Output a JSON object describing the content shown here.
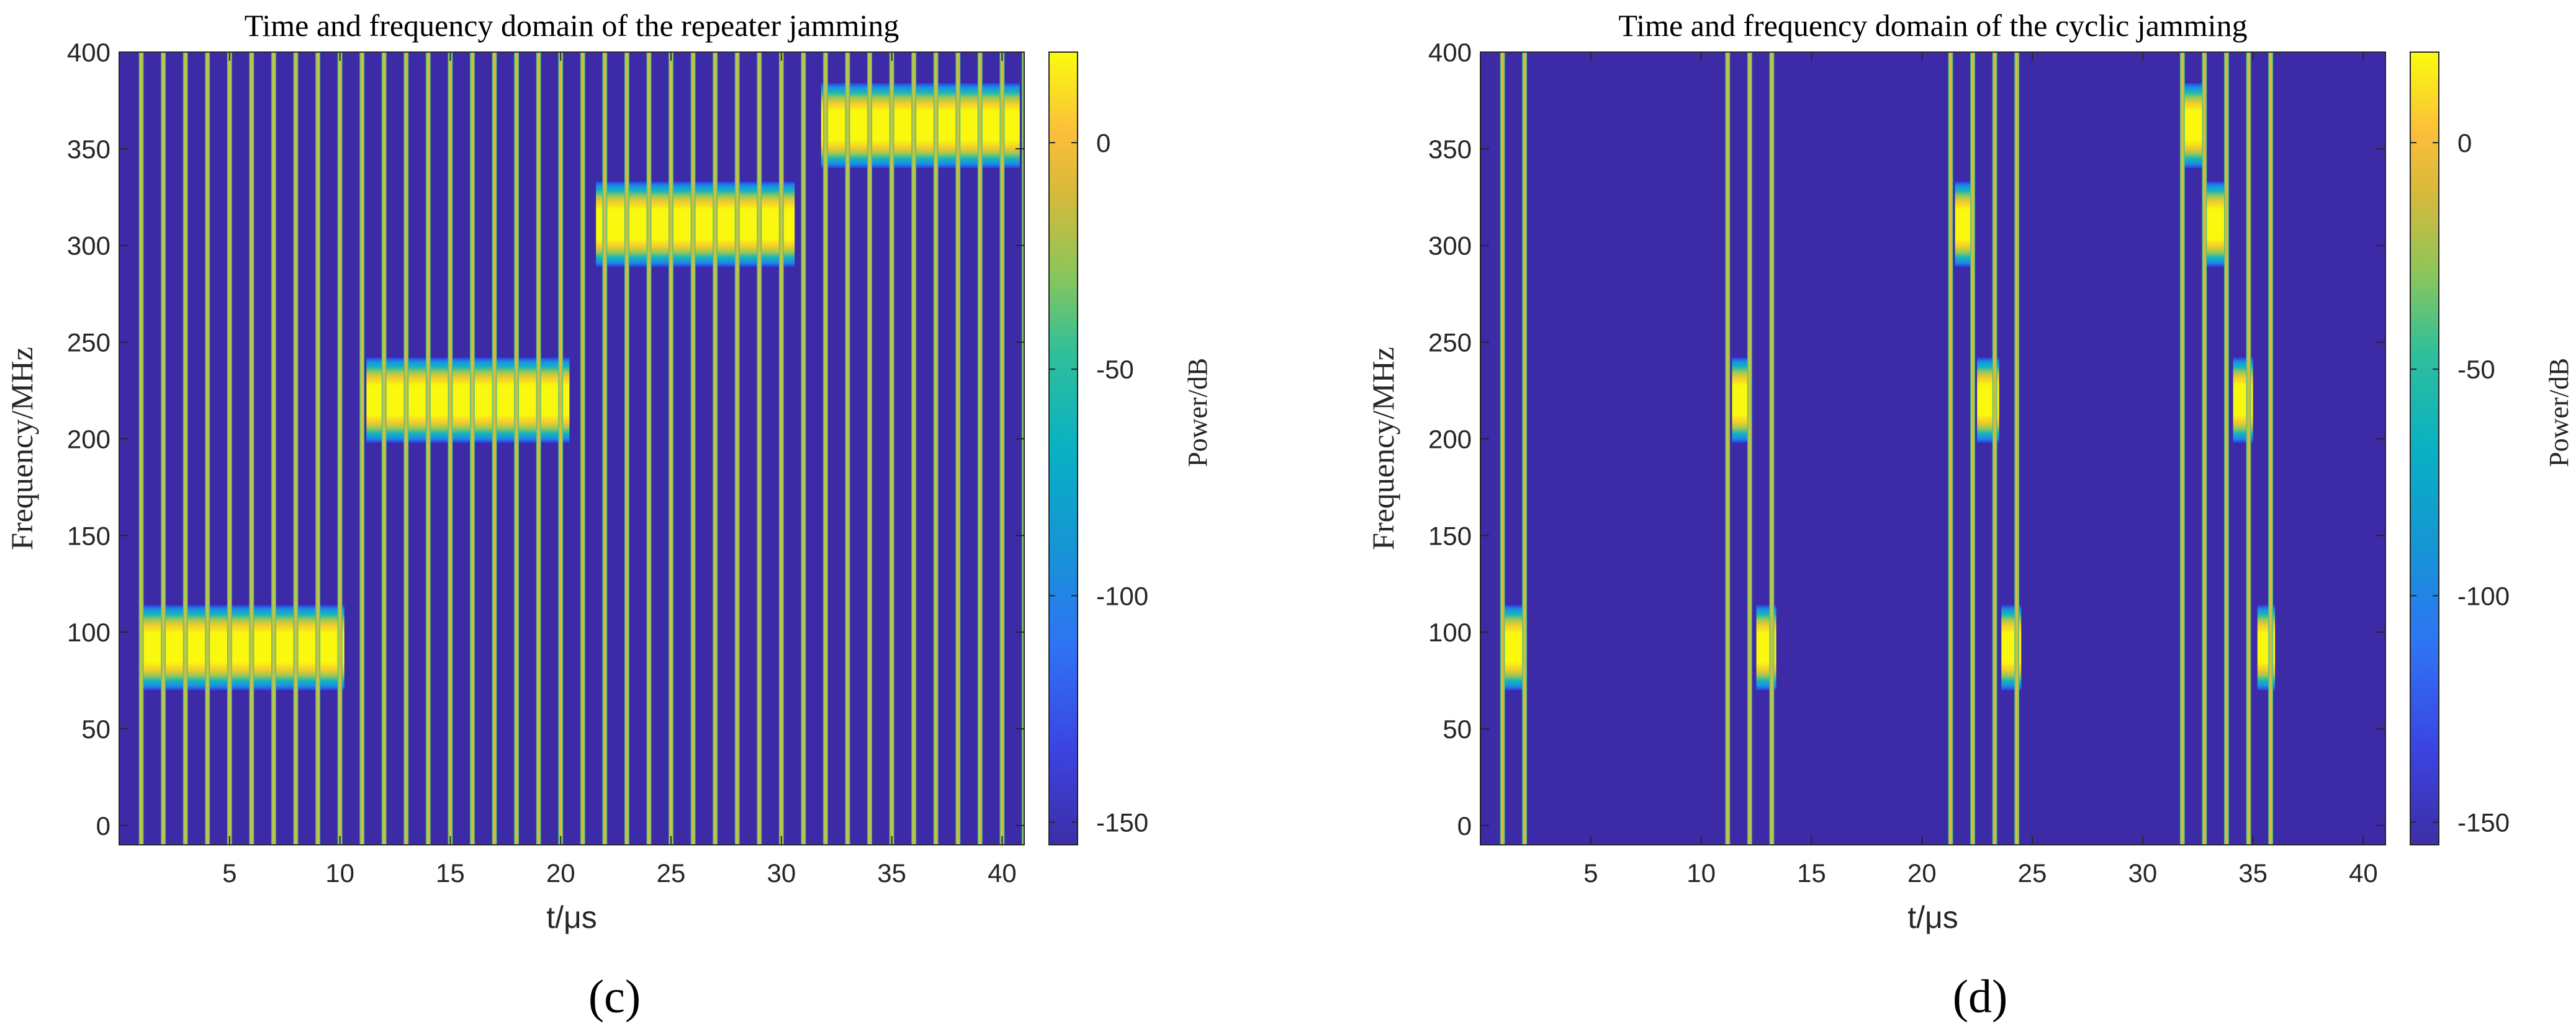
{
  "chart_data": [
    {
      "type": "heatmap",
      "panel_label": "(c)",
      "title": "Time and frequency domain of the repeater jamming",
      "xlabel": "t/μs",
      "ylabel": "Frequency/MHz",
      "colorbar_label": "Power/dB",
      "xlim": [
        0,
        41
      ],
      "ylim": [
        -10,
        400
      ],
      "xticks": [
        5,
        10,
        15,
        20,
        25,
        30,
        35,
        40
      ],
      "yticks": [
        0,
        50,
        100,
        150,
        200,
        250,
        300,
        350,
        400
      ],
      "clim": [
        -155,
        20
      ],
      "cticks": [
        0,
        -50,
        -100,
        -150
      ],
      "background_db": -155,
      "pulse_width_us": 0.22,
      "pulse_times_us": [
        1,
        2,
        3,
        4,
        5,
        6,
        7,
        8,
        9,
        10,
        11,
        12,
        13,
        14,
        15,
        16,
        17,
        18,
        19,
        20,
        21,
        22,
        23,
        24,
        25,
        26,
        27,
        28,
        29,
        30,
        31,
        32,
        33,
        34,
        35,
        36,
        37,
        38,
        39,
        40,
        41
      ],
      "bands": [
        {
          "t_start": 1.0,
          "t_end": 10.2,
          "f_center": 92,
          "f_half_width": 22
        },
        {
          "t_start": 11.2,
          "t_end": 20.4,
          "f_center": 220,
          "f_half_width": 22
        },
        {
          "t_start": 21.6,
          "t_end": 30.6,
          "f_center": 311,
          "f_half_width": 22
        },
        {
          "t_start": 31.8,
          "t_end": 40.8,
          "f_center": 362,
          "f_half_width": 22
        }
      ]
    },
    {
      "type": "heatmap",
      "panel_label": "(d)",
      "title": "Time and frequency domain of the cyclic jamming",
      "xlabel": "t/μs",
      "ylabel": "Frequency/MHz",
      "colorbar_label": "Power/dB",
      "xlim": [
        0,
        41
      ],
      "ylim": [
        -10,
        400
      ],
      "xticks": [
        5,
        10,
        15,
        20,
        25,
        30,
        35,
        40
      ],
      "yticks": [
        0,
        50,
        100,
        150,
        200,
        250,
        300,
        350,
        400
      ],
      "clim": [
        -155,
        20
      ],
      "cticks": [
        0,
        -50,
        -100,
        -150
      ],
      "background_db": -155,
      "pulse_width_us": 0.22,
      "pulse_times_us": [
        1.0,
        2.0,
        11.2,
        12.2,
        13.2,
        21.3,
        22.3,
        23.3,
        24.3,
        31.8,
        32.8,
        33.8,
        34.8,
        35.8
      ],
      "bands": [
        {
          "t_start": 0.9,
          "t_end": 1.9,
          "f_center": 92,
          "f_half_width": 22
        },
        {
          "t_start": 11.4,
          "t_end": 12.3,
          "f_center": 220,
          "f_half_width": 22
        },
        {
          "t_start": 12.5,
          "t_end": 13.4,
          "f_center": 92,
          "f_half_width": 22
        },
        {
          "t_start": 21.5,
          "t_end": 22.4,
          "f_center": 311,
          "f_half_width": 22
        },
        {
          "t_start": 22.5,
          "t_end": 23.5,
          "f_center": 220,
          "f_half_width": 22
        },
        {
          "t_start": 23.6,
          "t_end": 24.5,
          "f_center": 92,
          "f_half_width": 22
        },
        {
          "t_start": 31.9,
          "t_end": 32.8,
          "f_center": 362,
          "f_half_width": 22
        },
        {
          "t_start": 32.9,
          "t_end": 33.9,
          "f_center": 311,
          "f_half_width": 22
        },
        {
          "t_start": 34.1,
          "t_end": 35.0,
          "f_center": 220,
          "f_half_width": 22
        },
        {
          "t_start": 35.2,
          "t_end": 36.0,
          "f_center": 92,
          "f_half_width": 22
        }
      ]
    }
  ]
}
